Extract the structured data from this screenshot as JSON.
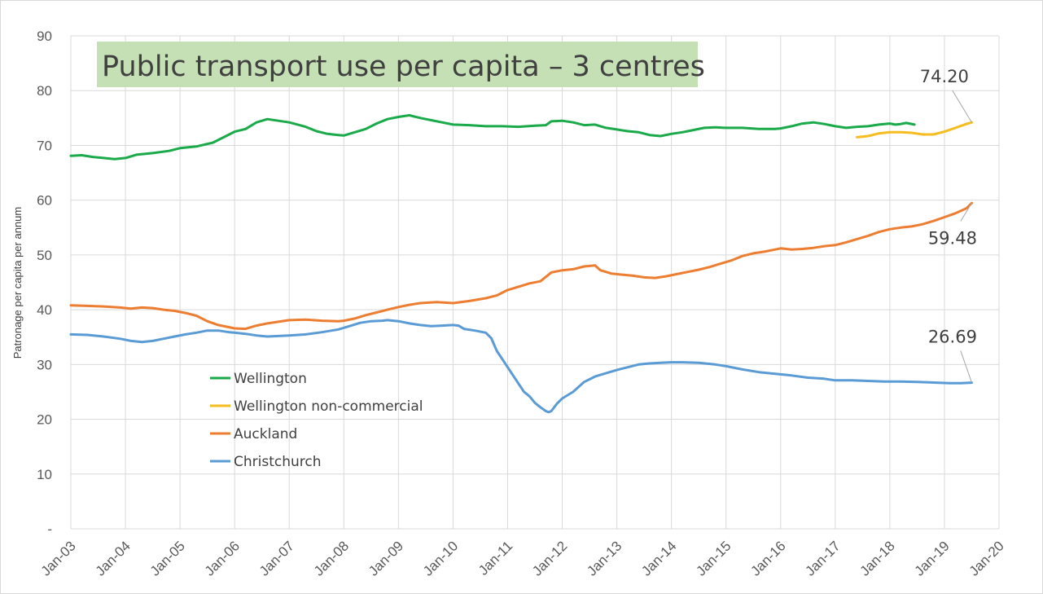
{
  "chart_data": {
    "type": "line",
    "title": "Public transport use per capita – 3 centres",
    "xlabel": "",
    "ylabel": "Patronage per capita per annum",
    "ylim": [
      0,
      90
    ],
    "yticks": [
      0,
      10,
      20,
      30,
      40,
      50,
      60,
      70,
      80,
      90
    ],
    "ytick_labels": [
      "-",
      "10",
      "20",
      "30",
      "40",
      "50",
      "60",
      "70",
      "80",
      "90"
    ],
    "xlim": [
      2003.0,
      2020.0
    ],
    "xticks": [
      2003,
      2004,
      2005,
      2006,
      2007,
      2008,
      2009,
      2010,
      2011,
      2012,
      2013,
      2014,
      2015,
      2016,
      2017,
      2018,
      2019,
      2020
    ],
    "xtick_labels": [
      "Jan-03",
      "Jan-04",
      "Jan-05",
      "Jan-06",
      "Jan-07",
      "Jan-08",
      "Jan-09",
      "Jan-10",
      "Jan-11",
      "Jan-12",
      "Jan-13",
      "Jan-14",
      "Jan-15",
      "Jan-16",
      "Jan-17",
      "Jan-18",
      "Jan-19",
      "Jan-20"
    ],
    "grid": true,
    "legend_position": "lower-left-inside",
    "series": [
      {
        "name": "Wellington",
        "color": "#1aaa4a",
        "points": [
          [
            2003.0,
            68.1
          ],
          [
            2003.2,
            68.2
          ],
          [
            2003.4,
            67.9
          ],
          [
            2003.6,
            67.7
          ],
          [
            2003.8,
            67.5
          ],
          [
            2004.0,
            67.7
          ],
          [
            2004.2,
            68.3
          ],
          [
            2004.5,
            68.6
          ],
          [
            2004.8,
            69.0
          ],
          [
            2005.0,
            69.5
          ],
          [
            2005.3,
            69.8
          ],
          [
            2005.6,
            70.5
          ],
          [
            2005.8,
            71.5
          ],
          [
            2006.0,
            72.5
          ],
          [
            2006.2,
            73.0
          ],
          [
            2006.4,
            74.2
          ],
          [
            2006.6,
            74.8
          ],
          [
            2006.8,
            74.5
          ],
          [
            2007.0,
            74.2
          ],
          [
            2007.3,
            73.4
          ],
          [
            2007.5,
            72.6
          ],
          [
            2007.7,
            72.1
          ],
          [
            2007.9,
            71.9
          ],
          [
            2008.0,
            71.8
          ],
          [
            2008.2,
            72.4
          ],
          [
            2008.4,
            73.0
          ],
          [
            2008.6,
            74.0
          ],
          [
            2008.8,
            74.8
          ],
          [
            2009.0,
            75.2
          ],
          [
            2009.2,
            75.5
          ],
          [
            2009.4,
            75.0
          ],
          [
            2009.6,
            74.6
          ],
          [
            2009.8,
            74.2
          ],
          [
            2010.0,
            73.8
          ],
          [
            2010.3,
            73.7
          ],
          [
            2010.6,
            73.5
          ],
          [
            2010.9,
            73.5
          ],
          [
            2011.2,
            73.4
          ],
          [
            2011.5,
            73.6
          ],
          [
            2011.7,
            73.7
          ],
          [
            2011.8,
            74.4
          ],
          [
            2012.0,
            74.5
          ],
          [
            2012.2,
            74.2
          ],
          [
            2012.4,
            73.7
          ],
          [
            2012.6,
            73.8
          ],
          [
            2012.8,
            73.2
          ],
          [
            2013.0,
            72.9
          ],
          [
            2013.2,
            72.6
          ],
          [
            2013.4,
            72.4
          ],
          [
            2013.6,
            71.9
          ],
          [
            2013.8,
            71.7
          ],
          [
            2014.0,
            72.1
          ],
          [
            2014.2,
            72.4
          ],
          [
            2014.4,
            72.8
          ],
          [
            2014.6,
            73.2
          ],
          [
            2014.8,
            73.3
          ],
          [
            2015.0,
            73.2
          ],
          [
            2015.3,
            73.2
          ],
          [
            2015.6,
            73.0
          ],
          [
            2015.9,
            73.0
          ],
          [
            2016.0,
            73.1
          ],
          [
            2016.2,
            73.5
          ],
          [
            2016.4,
            74.0
          ],
          [
            2016.6,
            74.2
          ],
          [
            2016.8,
            73.9
          ],
          [
            2017.0,
            73.5
          ],
          [
            2017.2,
            73.2
          ],
          [
            2017.4,
            73.4
          ],
          [
            2017.6,
            73.5
          ],
          [
            2017.8,
            73.8
          ],
          [
            2018.0,
            74.0
          ],
          [
            2018.1,
            73.8
          ],
          [
            2018.2,
            73.9
          ],
          [
            2018.3,
            74.1
          ],
          [
            2018.45,
            73.8
          ]
        ]
      },
      {
        "name": "Wellington non-commercial",
        "color": "#f5bd1f",
        "points": [
          [
            2017.4,
            71.5
          ],
          [
            2017.6,
            71.7
          ],
          [
            2017.8,
            72.2
          ],
          [
            2018.0,
            72.4
          ],
          [
            2018.2,
            72.4
          ],
          [
            2018.4,
            72.3
          ],
          [
            2018.6,
            72.0
          ],
          [
            2018.8,
            72.0
          ],
          [
            2019.0,
            72.5
          ],
          [
            2019.2,
            73.2
          ],
          [
            2019.4,
            73.9
          ],
          [
            2019.5,
            74.2
          ]
        ]
      },
      {
        "name": "Auckland",
        "color": "#ed7d31",
        "points": [
          [
            2003.0,
            40.8
          ],
          [
            2003.3,
            40.7
          ],
          [
            2003.6,
            40.6
          ],
          [
            2003.9,
            40.4
          ],
          [
            2004.1,
            40.2
          ],
          [
            2004.3,
            40.4
          ],
          [
            2004.5,
            40.3
          ],
          [
            2004.7,
            40.0
          ],
          [
            2004.9,
            39.8
          ],
          [
            2005.1,
            39.4
          ],
          [
            2005.3,
            38.9
          ],
          [
            2005.5,
            37.9
          ],
          [
            2005.7,
            37.2
          ],
          [
            2005.9,
            36.8
          ],
          [
            2006.0,
            36.6
          ],
          [
            2006.2,
            36.5
          ],
          [
            2006.4,
            37.1
          ],
          [
            2006.6,
            37.5
          ],
          [
            2006.8,
            37.8
          ],
          [
            2007.0,
            38.1
          ],
          [
            2007.3,
            38.2
          ],
          [
            2007.6,
            38.0
          ],
          [
            2007.9,
            37.9
          ],
          [
            2008.0,
            38.0
          ],
          [
            2008.2,
            38.4
          ],
          [
            2008.4,
            39.0
          ],
          [
            2008.6,
            39.5
          ],
          [
            2008.8,
            40.0
          ],
          [
            2009.0,
            40.5
          ],
          [
            2009.2,
            40.9
          ],
          [
            2009.4,
            41.2
          ],
          [
            2009.7,
            41.4
          ],
          [
            2010.0,
            41.2
          ],
          [
            2010.3,
            41.6
          ],
          [
            2010.6,
            42.1
          ],
          [
            2010.8,
            42.6
          ],
          [
            2011.0,
            43.6
          ],
          [
            2011.2,
            44.2
          ],
          [
            2011.4,
            44.8
          ],
          [
            2011.6,
            45.2
          ],
          [
            2011.8,
            46.8
          ],
          [
            2012.0,
            47.2
          ],
          [
            2012.2,
            47.4
          ],
          [
            2012.4,
            47.9
          ],
          [
            2012.6,
            48.1
          ],
          [
            2012.7,
            47.2
          ],
          [
            2012.9,
            46.6
          ],
          [
            2013.1,
            46.4
          ],
          [
            2013.3,
            46.2
          ],
          [
            2013.5,
            45.9
          ],
          [
            2013.7,
            45.8
          ],
          [
            2013.9,
            46.1
          ],
          [
            2014.1,
            46.5
          ],
          [
            2014.3,
            46.9
          ],
          [
            2014.5,
            47.3
          ],
          [
            2014.7,
            47.8
          ],
          [
            2014.9,
            48.4
          ],
          [
            2015.1,
            49.0
          ],
          [
            2015.3,
            49.8
          ],
          [
            2015.5,
            50.3
          ],
          [
            2015.7,
            50.6
          ],
          [
            2015.9,
            51.0
          ],
          [
            2016.0,
            51.2
          ],
          [
            2016.2,
            51.0
          ],
          [
            2016.4,
            51.1
          ],
          [
            2016.6,
            51.3
          ],
          [
            2016.8,
            51.6
          ],
          [
            2017.0,
            51.8
          ],
          [
            2017.2,
            52.3
          ],
          [
            2017.4,
            52.9
          ],
          [
            2017.6,
            53.5
          ],
          [
            2017.8,
            54.2
          ],
          [
            2018.0,
            54.7
          ],
          [
            2018.2,
            55.0
          ],
          [
            2018.4,
            55.2
          ],
          [
            2018.6,
            55.6
          ],
          [
            2018.8,
            56.2
          ],
          [
            2019.0,
            56.9
          ],
          [
            2019.2,
            57.6
          ],
          [
            2019.4,
            58.5
          ],
          [
            2019.5,
            59.48
          ]
        ]
      },
      {
        "name": "Christchurch",
        "color": "#5b9bd5",
        "points": [
          [
            2003.0,
            35.5
          ],
          [
            2003.3,
            35.4
          ],
          [
            2003.6,
            35.1
          ],
          [
            2003.9,
            34.7
          ],
          [
            2004.1,
            34.3
          ],
          [
            2004.3,
            34.1
          ],
          [
            2004.5,
            34.3
          ],
          [
            2004.7,
            34.7
          ],
          [
            2004.9,
            35.1
          ],
          [
            2005.1,
            35.5
          ],
          [
            2005.3,
            35.8
          ],
          [
            2005.5,
            36.2
          ],
          [
            2005.7,
            36.2
          ],
          [
            2005.9,
            35.9
          ],
          [
            2006.0,
            35.8
          ],
          [
            2006.2,
            35.6
          ],
          [
            2006.4,
            35.3
          ],
          [
            2006.6,
            35.1
          ],
          [
            2006.8,
            35.2
          ],
          [
            2007.0,
            35.3
          ],
          [
            2007.3,
            35.5
          ],
          [
            2007.6,
            35.9
          ],
          [
            2007.9,
            36.4
          ],
          [
            2008.1,
            37.0
          ],
          [
            2008.3,
            37.6
          ],
          [
            2008.5,
            37.9
          ],
          [
            2008.7,
            38.0
          ],
          [
            2008.8,
            38.1
          ],
          [
            2009.0,
            37.9
          ],
          [
            2009.2,
            37.5
          ],
          [
            2009.4,
            37.2
          ],
          [
            2009.6,
            37.0
          ],
          [
            2009.8,
            37.1
          ],
          [
            2010.0,
            37.2
          ],
          [
            2010.1,
            37.1
          ],
          [
            2010.2,
            36.5
          ],
          [
            2010.4,
            36.2
          ],
          [
            2010.6,
            35.8
          ],
          [
            2010.7,
            34.8
          ],
          [
            2010.8,
            32.5
          ],
          [
            2010.9,
            31.0
          ],
          [
            2011.0,
            29.5
          ],
          [
            2011.1,
            28.0
          ],
          [
            2011.2,
            26.5
          ],
          [
            2011.3,
            25.0
          ],
          [
            2011.4,
            24.2
          ],
          [
            2011.5,
            23.0
          ],
          [
            2011.6,
            22.2
          ],
          [
            2011.7,
            21.5
          ],
          [
            2011.75,
            21.3
          ],
          [
            2011.8,
            21.5
          ],
          [
            2011.9,
            22.8
          ],
          [
            2012.0,
            23.8
          ],
          [
            2012.2,
            25.0
          ],
          [
            2012.4,
            26.8
          ],
          [
            2012.6,
            27.8
          ],
          [
            2012.8,
            28.4
          ],
          [
            2013.0,
            29.0
          ],
          [
            2013.2,
            29.5
          ],
          [
            2013.4,
            30.0
          ],
          [
            2013.6,
            30.2
          ],
          [
            2013.8,
            30.3
          ],
          [
            2014.0,
            30.4
          ],
          [
            2014.2,
            30.4
          ],
          [
            2014.5,
            30.3
          ],
          [
            2014.8,
            30.0
          ],
          [
            2015.0,
            29.7
          ],
          [
            2015.3,
            29.1
          ],
          [
            2015.6,
            28.6
          ],
          [
            2015.9,
            28.3
          ],
          [
            2016.2,
            28.0
          ],
          [
            2016.5,
            27.6
          ],
          [
            2016.8,
            27.4
          ],
          [
            2017.0,
            27.1
          ],
          [
            2017.3,
            27.1
          ],
          [
            2017.6,
            27.0
          ],
          [
            2017.9,
            26.9
          ],
          [
            2018.2,
            26.9
          ],
          [
            2018.5,
            26.8
          ],
          [
            2018.8,
            26.7
          ],
          [
            2019.1,
            26.6
          ],
          [
            2019.3,
            26.6
          ],
          [
            2019.5,
            26.69
          ]
        ]
      }
    ],
    "annotations": [
      {
        "label": "74.20",
        "series": "Wellington non-commercial",
        "x": 2019.5,
        "y": 74.2,
        "text_x": 2018.55,
        "text_y": 81.5
      },
      {
        "label": "59.48",
        "series": "Auckland",
        "x": 2019.5,
        "y": 59.48,
        "text_x": 2018.7,
        "text_y": 52.0
      },
      {
        "label": "26.69",
        "series": "Christchurch",
        "x": 2019.5,
        "y": 26.69,
        "text_x": 2018.7,
        "text_y": 34.0
      }
    ]
  }
}
